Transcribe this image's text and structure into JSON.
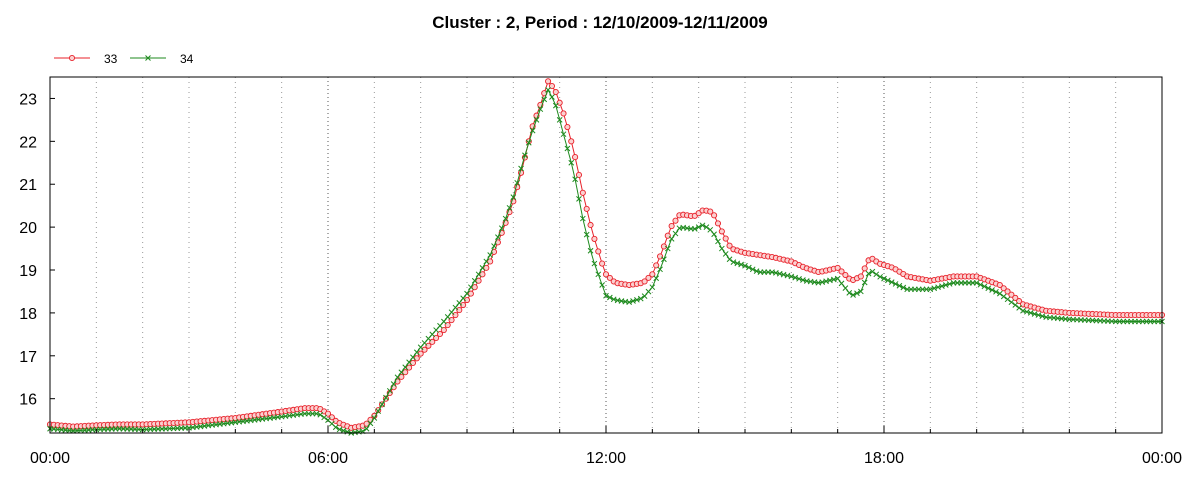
{
  "chart_data": {
    "type": "line",
    "title": "Cluster : 2, Period : 12/10/2009-12/11/2009",
    "xlabel": "",
    "ylabel": "",
    "x_unit": "hours since 12/10/2009 00:00",
    "xlim": [
      0,
      24
    ],
    "ylim": [
      15.2,
      23.5
    ],
    "x_tick_values": [
      0,
      6,
      12,
      18,
      24
    ],
    "x_tick_labels": [
      "00:00",
      "06:00",
      "12:00",
      "18:00",
      "00:00"
    ],
    "y_ticks": [
      16,
      17,
      18,
      19,
      20,
      21,
      22,
      23
    ],
    "grid": "vertical dotted lines every 1 hour",
    "legend_position": "top-left",
    "series": [
      {
        "name": "33",
        "color": "#e8212a",
        "marker": "circle",
        "points": [
          [
            0,
            15.4
          ],
          [
            0.5,
            15.35
          ],
          [
            1,
            15.38
          ],
          [
            1.5,
            15.4
          ],
          [
            2,
            15.4
          ],
          [
            3,
            15.45
          ],
          [
            4,
            15.55
          ],
          [
            5,
            15.7
          ],
          [
            5.5,
            15.78
          ],
          [
            5.8,
            15.78
          ],
          [
            6,
            15.65
          ],
          [
            6.2,
            15.45
          ],
          [
            6.5,
            15.32
          ],
          [
            6.8,
            15.38
          ],
          [
            7,
            15.6
          ],
          [
            7.5,
            16.4
          ],
          [
            8,
            17.05
          ],
          [
            8.5,
            17.6
          ],
          [
            9,
            18.3
          ],
          [
            9.5,
            19.2
          ],
          [
            9.8,
            20.0
          ],
          [
            10,
            20.6
          ],
          [
            10.2,
            21.4
          ],
          [
            10.4,
            22.3
          ],
          [
            10.6,
            22.9
          ],
          [
            10.75,
            23.4
          ],
          [
            10.9,
            23.2
          ],
          [
            11.1,
            22.6
          ],
          [
            11.3,
            21.8
          ],
          [
            11.5,
            20.8
          ],
          [
            11.7,
            19.9
          ],
          [
            11.9,
            19.2
          ],
          [
            12,
            18.9
          ],
          [
            12.2,
            18.7
          ],
          [
            12.5,
            18.65
          ],
          [
            12.8,
            18.7
          ],
          [
            13,
            18.9
          ],
          [
            13.2,
            19.4
          ],
          [
            13.4,
            20.0
          ],
          [
            13.6,
            20.3
          ],
          [
            13.9,
            20.25
          ],
          [
            14.1,
            20.4
          ],
          [
            14.3,
            20.35
          ],
          [
            14.5,
            19.9
          ],
          [
            14.7,
            19.5
          ],
          [
            15,
            19.4
          ],
          [
            15.3,
            19.35
          ],
          [
            15.6,
            19.3
          ],
          [
            16,
            19.2
          ],
          [
            16.3,
            19.05
          ],
          [
            16.6,
            18.95
          ],
          [
            17,
            19.05
          ],
          [
            17.3,
            18.75
          ],
          [
            17.5,
            18.85
          ],
          [
            17.7,
            19.3
          ],
          [
            17.9,
            19.15
          ],
          [
            18.2,
            19.05
          ],
          [
            18.5,
            18.85
          ],
          [
            19,
            18.75
          ],
          [
            19.5,
            18.85
          ],
          [
            20,
            18.85
          ],
          [
            20.5,
            18.65
          ],
          [
            21,
            18.2
          ],
          [
            21.5,
            18.05
          ],
          [
            22,
            18.0
          ],
          [
            23,
            17.95
          ],
          [
            24,
            17.95
          ]
        ]
      },
      {
        "name": "34",
        "color": "#1e8a1e",
        "marker": "x",
        "points": [
          [
            0,
            15.3
          ],
          [
            0.5,
            15.25
          ],
          [
            1,
            15.28
          ],
          [
            1.5,
            15.3
          ],
          [
            2,
            15.28
          ],
          [
            3,
            15.32
          ],
          [
            4,
            15.45
          ],
          [
            5,
            15.58
          ],
          [
            5.5,
            15.65
          ],
          [
            5.8,
            15.65
          ],
          [
            6,
            15.5
          ],
          [
            6.2,
            15.3
          ],
          [
            6.5,
            15.2
          ],
          [
            6.8,
            15.25
          ],
          [
            7,
            15.55
          ],
          [
            7.5,
            16.5
          ],
          [
            8,
            17.2
          ],
          [
            8.5,
            17.8
          ],
          [
            9,
            18.45
          ],
          [
            9.5,
            19.35
          ],
          [
            9.8,
            20.1
          ],
          [
            10,
            20.7
          ],
          [
            10.2,
            21.5
          ],
          [
            10.4,
            22.2
          ],
          [
            10.6,
            22.8
          ],
          [
            10.75,
            23.2
          ],
          [
            10.9,
            22.9
          ],
          [
            11.1,
            22.1
          ],
          [
            11.3,
            21.3
          ],
          [
            11.5,
            20.2
          ],
          [
            11.7,
            19.3
          ],
          [
            11.9,
            18.7
          ],
          [
            12,
            18.4
          ],
          [
            12.2,
            18.3
          ],
          [
            12.5,
            18.25
          ],
          [
            12.8,
            18.35
          ],
          [
            13,
            18.6
          ],
          [
            13.2,
            19.1
          ],
          [
            13.4,
            19.7
          ],
          [
            13.6,
            20.0
          ],
          [
            13.9,
            19.95
          ],
          [
            14.1,
            20.05
          ],
          [
            14.3,
            19.9
          ],
          [
            14.5,
            19.5
          ],
          [
            14.7,
            19.2
          ],
          [
            15,
            19.1
          ],
          [
            15.3,
            18.95
          ],
          [
            15.6,
            18.95
          ],
          [
            16,
            18.85
          ],
          [
            16.3,
            18.75
          ],
          [
            16.6,
            18.7
          ],
          [
            17,
            18.8
          ],
          [
            17.3,
            18.4
          ],
          [
            17.5,
            18.5
          ],
          [
            17.7,
            19.0
          ],
          [
            17.9,
            18.85
          ],
          [
            18.2,
            18.7
          ],
          [
            18.5,
            18.55
          ],
          [
            19,
            18.55
          ],
          [
            19.5,
            18.7
          ],
          [
            20,
            18.7
          ],
          [
            20.5,
            18.45
          ],
          [
            21,
            18.05
          ],
          [
            21.5,
            17.9
          ],
          [
            22,
            17.85
          ],
          [
            23,
            17.8
          ],
          [
            24,
            17.8
          ]
        ]
      }
    ]
  }
}
